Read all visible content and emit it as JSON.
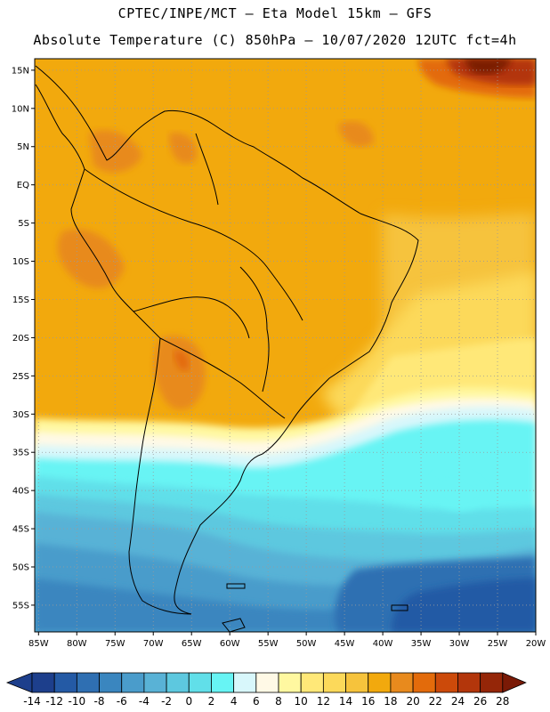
{
  "header": {
    "title_line1": "CPTEC/INPE/MCT –  Eta Model 15km – GFS",
    "title_line2": "Absolute Temperature (C) 850hPa – 10/07/2020 12UTC fct=4h"
  },
  "map": {
    "lat_labels": [
      "15N",
      "10N",
      "5N",
      "EQ",
      "5S",
      "10S",
      "15S",
      "20S",
      "25S",
      "30S",
      "35S",
      "40S",
      "45S",
      "50S",
      "55S"
    ],
    "lon_labels": [
      "85W",
      "80W",
      "75W",
      "70W",
      "65W",
      "60W",
      "55W",
      "50W",
      "45W",
      "40W",
      "35W",
      "30W",
      "25W",
      "20W"
    ]
  },
  "colorbar": {
    "ticks": [
      "-14",
      "-12",
      "-10",
      "-8",
      "-6",
      "-4",
      "-2",
      "0",
      "2",
      "4",
      "6",
      "8",
      "10",
      "12",
      "14",
      "16",
      "18",
      "20",
      "22",
      "24",
      "26",
      "28"
    ],
    "colors": [
      "#1d3f8c",
      "#245aa5",
      "#2f6fb2",
      "#3a86bf",
      "#4a9ccb",
      "#59b2d6",
      "#5dc8df",
      "#61dfe9",
      "#67f4f4",
      "#d8f7fb",
      "#fff9e6",
      "#fff8a0",
      "#ffe878",
      "#fcd95a",
      "#f6c33c",
      "#f2a90d",
      "#e88a1d",
      "#e36b0b",
      "#cc4a0a",
      "#b3360b",
      "#952608",
      "#7a1a06"
    ]
  }
}
